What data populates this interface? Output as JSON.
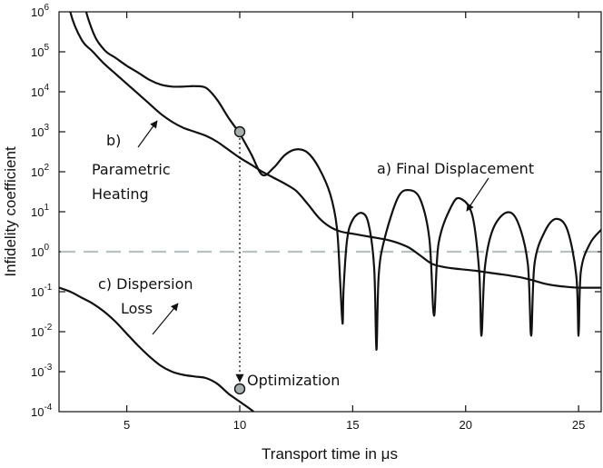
{
  "chart_data": {
    "type": "line",
    "title": "",
    "xlabel": "Transport time in μs",
    "ylabel": "Infidelity coefficient",
    "xlim": [
      2.0,
      26.0
    ],
    "ylim_log10": [
      -4,
      6
    ],
    "x_ticks": [
      5,
      10,
      15,
      20,
      25
    ],
    "x_tick_labels": [
      "5",
      "10",
      "15",
      "20",
      "25"
    ],
    "y_tick_labels": [
      {
        "base": "10",
        "exp": "-4"
      },
      {
        "base": "10",
        "exp": "-3"
      },
      {
        "base": "10",
        "exp": "-2"
      },
      {
        "base": "10",
        "exp": "-1"
      },
      {
        "base": "10",
        "exp": "0"
      },
      {
        "base": "10",
        "exp": "1"
      },
      {
        "base": "10",
        "exp": "2"
      },
      {
        "base": "10",
        "exp": "3"
      },
      {
        "base": "10",
        "exp": "4"
      },
      {
        "base": "10",
        "exp": "5"
      },
      {
        "base": "10",
        "exp": "6"
      }
    ],
    "threshold": {
      "y": 1.0,
      "style": "dashed",
      "color": "#b9c2c2"
    },
    "series": [
      {
        "name": "a) Final Displacement",
        "points_log10": [
          [
            2.0,
            8.0
          ],
          [
            2.5,
            8.5
          ],
          [
            3.0,
            6.5
          ],
          [
            3.5,
            5.5
          ],
          [
            4.0,
            5.05
          ],
          [
            4.5,
            4.85
          ],
          [
            5.0,
            4.65
          ],
          [
            5.5,
            4.48
          ],
          [
            6.0,
            4.3
          ],
          [
            6.5,
            4.18
          ],
          [
            7.0,
            4.13
          ],
          [
            7.5,
            4.13
          ],
          [
            8.0,
            4.14
          ],
          [
            8.5,
            4.1
          ],
          [
            9.0,
            3.8
          ],
          [
            9.5,
            3.35
          ],
          [
            10.0,
            2.95
          ],
          [
            10.5,
            2.45
          ],
          [
            11.0,
            1.92
          ],
          [
            11.5,
            2.1
          ],
          [
            12.0,
            2.42
          ],
          [
            12.5,
            2.56
          ],
          [
            13.0,
            2.48
          ],
          [
            13.5,
            2.1
          ],
          [
            14.0,
            1.45
          ],
          [
            14.3,
            0.6
          ],
          [
            14.45,
            -0.8
          ],
          [
            14.55,
            -1.8
          ],
          [
            14.6,
            -0.9
          ],
          [
            14.75,
            0.3
          ],
          [
            15.0,
            0.8
          ],
          [
            15.4,
            0.97
          ],
          [
            15.7,
            0.7
          ],
          [
            15.95,
            -0.4
          ],
          [
            16.05,
            -2.45
          ],
          [
            16.15,
            -0.6
          ],
          [
            16.4,
            0.3
          ],
          [
            17.0,
            1.35
          ],
          [
            17.5,
            1.54
          ],
          [
            18.0,
            1.3
          ],
          [
            18.4,
            0.3
          ],
          [
            18.6,
            -1.6
          ],
          [
            18.8,
            0.2
          ],
          [
            19.4,
            1.17
          ],
          [
            19.8,
            1.32
          ],
          [
            20.3,
            0.9
          ],
          [
            20.6,
            -0.5
          ],
          [
            20.7,
            -2.1
          ],
          [
            20.85,
            -0.4
          ],
          [
            21.2,
            0.55
          ],
          [
            21.8,
            0.98
          ],
          [
            22.3,
            0.75
          ],
          [
            22.75,
            -0.3
          ],
          [
            22.9,
            -2.1
          ],
          [
            23.05,
            -0.3
          ],
          [
            23.5,
            0.5
          ],
          [
            24.0,
            0.82
          ],
          [
            24.5,
            0.55
          ],
          [
            24.9,
            -0.6
          ],
          [
            25.0,
            -2.1
          ],
          [
            25.1,
            -0.5
          ],
          [
            25.5,
            0.2
          ],
          [
            26.0,
            0.55
          ]
        ]
      },
      {
        "name": "b) Parametric Heating",
        "points_log10": [
          [
            2.0,
            8.5
          ],
          [
            2.2,
            7.2
          ],
          [
            2.5,
            6.0
          ],
          [
            3.0,
            5.3
          ],
          [
            3.5,
            5.0
          ],
          [
            4.0,
            4.7
          ],
          [
            4.5,
            4.45
          ],
          [
            5.0,
            4.2
          ],
          [
            5.5,
            3.95
          ],
          [
            6.0,
            3.7
          ],
          [
            6.5,
            3.45
          ],
          [
            7.0,
            3.25
          ],
          [
            7.5,
            3.1
          ],
          [
            8.0,
            3.0
          ],
          [
            8.5,
            2.9
          ],
          [
            9.0,
            2.75
          ],
          [
            9.5,
            2.55
          ],
          [
            10.0,
            2.35
          ],
          [
            10.5,
            2.18
          ],
          [
            11.0,
            2.0
          ],
          [
            11.5,
            1.85
          ],
          [
            12.0,
            1.7
          ],
          [
            12.5,
            1.52
          ],
          [
            13.0,
            1.2
          ],
          [
            13.5,
            0.85
          ],
          [
            14.0,
            0.62
          ],
          [
            14.5,
            0.5
          ],
          [
            15.0,
            0.45
          ],
          [
            15.5,
            0.4
          ],
          [
            16.0,
            0.35
          ],
          [
            16.5,
            0.3
          ],
          [
            17.0,
            0.22
          ],
          [
            17.5,
            0.1
          ],
          [
            18.0,
            -0.1
          ],
          [
            18.5,
            -0.3
          ],
          [
            19.0,
            -0.38
          ],
          [
            19.5,
            -0.42
          ],
          [
            20.0,
            -0.45
          ],
          [
            20.5,
            -0.48
          ],
          [
            21.0,
            -0.52
          ],
          [
            21.5,
            -0.56
          ],
          [
            22.0,
            -0.6
          ],
          [
            22.5,
            -0.65
          ],
          [
            23.0,
            -0.72
          ],
          [
            23.5,
            -0.8
          ],
          [
            24.0,
            -0.85
          ],
          [
            24.5,
            -0.88
          ],
          [
            25.0,
            -0.9
          ],
          [
            25.5,
            -0.9
          ],
          [
            26.0,
            -0.9
          ]
        ]
      },
      {
        "name": "c) Dispersion Loss",
        "points_log10": [
          [
            2.0,
            -0.9
          ],
          [
            2.5,
            -1.0
          ],
          [
            3.0,
            -1.15
          ],
          [
            3.5,
            -1.3
          ],
          [
            4.0,
            -1.5
          ],
          [
            4.5,
            -1.75
          ],
          [
            5.0,
            -2.05
          ],
          [
            5.5,
            -2.35
          ],
          [
            6.0,
            -2.62
          ],
          [
            6.5,
            -2.85
          ],
          [
            7.0,
            -3.0
          ],
          [
            7.5,
            -3.08
          ],
          [
            8.0,
            -3.12
          ],
          [
            8.5,
            -3.16
          ],
          [
            9.0,
            -3.3
          ],
          [
            9.5,
            -3.55
          ],
          [
            10.0,
            -3.75
          ],
          [
            10.5,
            -3.95
          ],
          [
            10.8,
            -4.1
          ]
        ]
      }
    ],
    "markers": [
      {
        "x": 10.0,
        "y_log10": 3.0
      },
      {
        "x": 10.0,
        "y_log10": -3.43
      }
    ],
    "annotations": [
      {
        "id": "a",
        "text": "a) Final Displacement"
      },
      {
        "id": "b1",
        "text": "b)"
      },
      {
        "id": "b2",
        "text": "Parametric"
      },
      {
        "id": "b3",
        "text": "Heating"
      },
      {
        "id": "c1",
        "text": "c) Dispersion"
      },
      {
        "id": "c2",
        "text": "Loss"
      },
      {
        "id": "opt",
        "text": "Optimization"
      }
    ]
  }
}
